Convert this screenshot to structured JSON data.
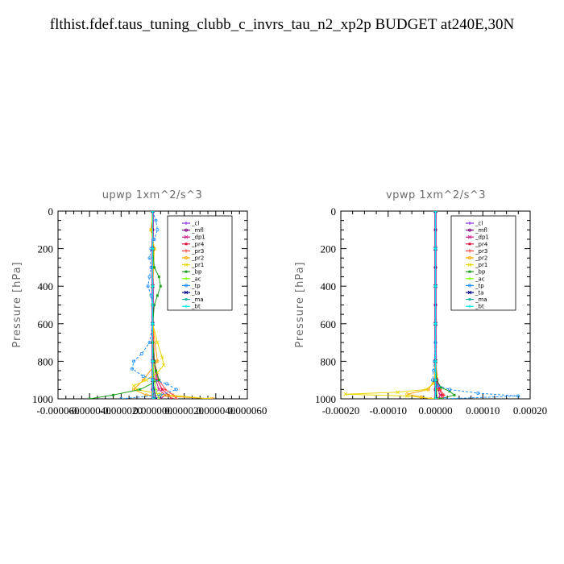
{
  "title": "flthist.fdef.taus_tuning_clubb_c_invrs_tau_n2_xp2p  BUDGET at240E,30N",
  "chart_data": [
    {
      "type": "line",
      "title": "upwp   1xm^2/s^3",
      "ylabel": "Pressure [hPa]",
      "xlabel": "",
      "xlim": [
        -6e-05,
        6e-05
      ],
      "ylim": [
        1000,
        0
      ],
      "xticks": [
        -6e-05,
        -4e-05,
        -2e-05,
        0.0,
        2e-05,
        4e-05,
        6e-05
      ],
      "xtick_labels": [
        "-0.000060",
        "-0.000040",
        "-0.000020",
        "0.000000",
        "0.000020",
        "0.000040",
        "0.000060"
      ],
      "yticks": [
        0,
        200,
        400,
        600,
        800,
        1000
      ],
      "ytick_labels": [
        "0",
        "200",
        "400",
        "600",
        "800",
        "1000"
      ],
      "legend_position": "top-right",
      "series": [
        {
          "name": "_cl",
          "color": "#8a2be2",
          "y": [
            0,
            100,
            200,
            300,
            400,
            500,
            600,
            700,
            800,
            900,
            950,
            1000
          ],
          "x": [
            0,
            0,
            0,
            0,
            0,
            0,
            0,
            0,
            0,
            0,
            0,
            0
          ]
        },
        {
          "name": "_mfl",
          "color": "#800080",
          "y": [
            0,
            100,
            200,
            300,
            400,
            500,
            600,
            700,
            800,
            900,
            950,
            1000
          ],
          "x": [
            0,
            0,
            0,
            0,
            0,
            0,
            0,
            0,
            0,
            0,
            0,
            0
          ]
        },
        {
          "name": "_dp1",
          "color": "#c71585",
          "y": [
            0,
            200,
            400,
            600,
            800,
            900,
            950,
            980,
            1000
          ],
          "x": [
            0,
            0,
            0,
            0,
            1e-06,
            2e-06,
            4e-06,
            8e-06,
            5e-06
          ]
        },
        {
          "name": "_pr4",
          "color": "#dc143c",
          "y": [
            0,
            200,
            400,
            600,
            800,
            900,
            950,
            980,
            1000
          ],
          "x": [
            0,
            0,
            0,
            0,
            1e-06,
            3e-06,
            6e-06,
            1e-05,
            1.2e-05
          ]
        },
        {
          "name": "_pr3",
          "color": "#ff4040",
          "y": [
            0,
            200,
            400,
            600,
            800,
            900,
            950,
            980,
            1000
          ],
          "x": [
            0,
            0,
            0,
            0,
            1e-06,
            4e-06,
            8e-06,
            1.3e-05,
            1.5e-05
          ]
        },
        {
          "name": "_pr2",
          "color": "#ffa500",
          "y": [
            0,
            100,
            200,
            400,
            600,
            800,
            900,
            950,
            980,
            1000
          ],
          "x": [
            0,
            -1e-06,
            1e-06,
            0,
            0,
            3e-06,
            -6e-06,
            -1.2e-05,
            -4e-06,
            3.8e-05
          ]
        },
        {
          "name": "_pr1",
          "color": "#e6d800",
          "y": [
            0,
            100,
            200,
            300,
            400,
            500,
            600,
            700,
            780,
            820,
            860,
            900,
            930,
            950,
            975,
            1000
          ],
          "x": [
            0,
            -1e-06,
            1e-06,
            0,
            0,
            0,
            0,
            3e-06,
            6e-06,
            7e-06,
            3e-06,
            -4e-06,
            -1.2e-05,
            -1e-05,
            5e-06,
            3.6e-05
          ]
        },
        {
          "name": "_bp",
          "color": "#1fa01f",
          "y": [
            0,
            200,
            300,
            350,
            400,
            450,
            500,
            600,
            700,
            800,
            850,
            900,
            950,
            980,
            1000
          ],
          "x": [
            0,
            0,
            1e-06,
            4e-06,
            5e-06,
            3e-06,
            1e-06,
            0,
            0,
            1e-06,
            2e-06,
            4e-06,
            -8e-06,
            -2.5e-05,
            -4e-05
          ]
        },
        {
          "name": "_ac",
          "color": "#7cfc00",
          "y": [
            0,
            200,
            400,
            600,
            800,
            900,
            950,
            1000
          ],
          "x": [
            0,
            0,
            0,
            0,
            0,
            1e-06,
            2e-06,
            4e-06
          ]
        },
        {
          "name": "_tp",
          "color": "#1e90ff",
          "y": [
            0,
            50,
            100,
            150,
            200,
            250,
            300,
            350,
            400,
            450,
            500,
            600,
            700,
            760,
            800,
            840,
            880,
            920,
            950,
            980,
            1000
          ],
          "x": [
            0,
            2e-06,
            3e-06,
            1e-06,
            -1e-06,
            -2e-06,
            -1e-06,
            -2e-06,
            -3e-06,
            -1e-06,
            0,
            0,
            -2e-06,
            -7e-06,
            -1.2e-05,
            -1.3e-05,
            -6e-06,
            9e-06,
            1.5e-05,
            5e-06,
            -2e-05
          ]
        },
        {
          "name": "_ta",
          "color": "#00008b",
          "y": [
            0,
            200,
            400,
            600,
            800,
            900,
            1000
          ],
          "x": [
            0,
            0,
            0,
            0,
            0,
            0,
            2e-06
          ]
        },
        {
          "name": "_ma",
          "color": "#20b2aa",
          "y": [
            0,
            200,
            400,
            600,
            800,
            900,
            1000
          ],
          "x": [
            0,
            0,
            0,
            0,
            0,
            0,
            1e-06
          ]
        },
        {
          "name": "_bt",
          "color": "#00e5ee",
          "y": [
            0,
            200,
            400,
            600,
            800,
            900,
            1000
          ],
          "x": [
            0,
            0,
            0,
            0,
            0,
            0,
            0
          ]
        }
      ]
    },
    {
      "type": "line",
      "title": "vpwp   1xm^2/s^3",
      "ylabel": "Pressure [hPa]",
      "xlabel": "",
      "xlim": [
        -0.0002,
        0.0002
      ],
      "ylim": [
        1000,
        0
      ],
      "xticks": [
        -0.0002,
        -0.0001,
        0.0,
        0.0001,
        0.0002
      ],
      "xtick_labels": [
        "-0.00020",
        "-0.00010",
        "0.00000",
        "0.00010",
        "0.00020"
      ],
      "yticks": [
        0,
        200,
        400,
        600,
        800,
        1000
      ],
      "ytick_labels": [
        "0",
        "200",
        "400",
        "600",
        "800",
        "1000"
      ],
      "legend_position": "top-right",
      "series": [
        {
          "name": "_cl",
          "color": "#8a2be2",
          "y": [
            0,
            100,
            200,
            300,
            400,
            500,
            600,
            700,
            800,
            900,
            950,
            1000
          ],
          "x": [
            0,
            0,
            0,
            0,
            0,
            0,
            0,
            0,
            0,
            0,
            0,
            0
          ]
        },
        {
          "name": "_mfl",
          "color": "#800080",
          "y": [
            0,
            100,
            200,
            300,
            400,
            500,
            600,
            700,
            800,
            900,
            950,
            1000
          ],
          "x": [
            0,
            0,
            0,
            0,
            0,
            0,
            0,
            0,
            0,
            0,
            0,
            0
          ]
        },
        {
          "name": "_dp1",
          "color": "#c71585",
          "y": [
            0,
            200,
            400,
            600,
            800,
            900,
            950,
            980,
            1000
          ],
          "x": [
            0,
            0,
            0,
            0,
            0,
            2e-06,
            5e-06,
            1e-05,
            6e-06
          ]
        },
        {
          "name": "_pr4",
          "color": "#dc143c",
          "y": [
            0,
            200,
            400,
            600,
            800,
            900,
            950,
            980,
            1000
          ],
          "x": [
            0,
            0,
            0,
            0,
            0,
            3e-06,
            8e-06,
            1.4e-05,
            1.2e-05
          ]
        },
        {
          "name": "_pr3",
          "color": "#ff4040",
          "y": [
            0,
            200,
            400,
            600,
            800,
            900,
            950,
            980,
            1000
          ],
          "x": [
            0,
            0,
            0,
            0,
            0,
            4e-06,
            1e-05,
            1.8e-05,
            1.5e-05
          ]
        },
        {
          "name": "_pr2",
          "color": "#ffa500",
          "y": [
            0,
            200,
            400,
            600,
            800,
            900,
            950,
            975,
            990,
            1000
          ],
          "x": [
            0,
            0,
            0,
            0,
            0,
            -2e-06,
            -1.5e-05,
            -6e-05,
            -3e-05,
            -1e-05
          ]
        },
        {
          "name": "_pr1",
          "color": "#e6d800",
          "y": [
            0,
            200,
            400,
            600,
            800,
            880,
            920,
            950,
            965,
            975,
            985,
            1000
          ],
          "x": [
            0,
            0,
            0,
            0,
            0,
            2e-06,
            -5e-06,
            -2e-05,
            -8e-05,
            -0.00019,
            -6e-05,
            0
          ]
        },
        {
          "name": "_bp",
          "color": "#1fa01f",
          "y": [
            0,
            200,
            400,
            600,
            800,
            900,
            940,
            960,
            980,
            1000
          ],
          "x": [
            0,
            0,
            0,
            0,
            0,
            2e-06,
            1.2e-05,
            3e-05,
            4e-05,
            1e-05
          ]
        },
        {
          "name": "_ac",
          "color": "#7cfc00",
          "y": [
            0,
            200,
            400,
            600,
            800,
            900,
            950,
            1000
          ],
          "x": [
            0,
            0,
            0,
            0,
            0,
            0,
            2e-06,
            4e-06
          ]
        },
        {
          "name": "_tp",
          "color": "#1e90ff",
          "y": [
            0,
            200,
            400,
            600,
            700,
            800,
            850,
            900,
            930,
            950,
            970,
            985,
            1000
          ],
          "x": [
            0,
            0,
            0,
            0,
            0,
            -2e-06,
            -4e-06,
            -6e-06,
            5e-06,
            3e-05,
            9e-05,
            0.000175,
            2e-05
          ]
        },
        {
          "name": "_ta",
          "color": "#00008b",
          "y": [
            0,
            200,
            400,
            600,
            800,
            900,
            1000
          ],
          "x": [
            0,
            0,
            0,
            0,
            0,
            0,
            2e-06
          ]
        },
        {
          "name": "_ma",
          "color": "#20b2aa",
          "y": [
            0,
            200,
            400,
            600,
            800,
            900,
            1000
          ],
          "x": [
            0,
            0,
            0,
            0,
            0,
            0,
            1e-06
          ]
        },
        {
          "name": "_bt",
          "color": "#00e5ee",
          "y": [
            0,
            200,
            400,
            600,
            800,
            900,
            1000
          ],
          "x": [
            0,
            0,
            0,
            0,
            0,
            0,
            0
          ]
        }
      ]
    }
  ]
}
